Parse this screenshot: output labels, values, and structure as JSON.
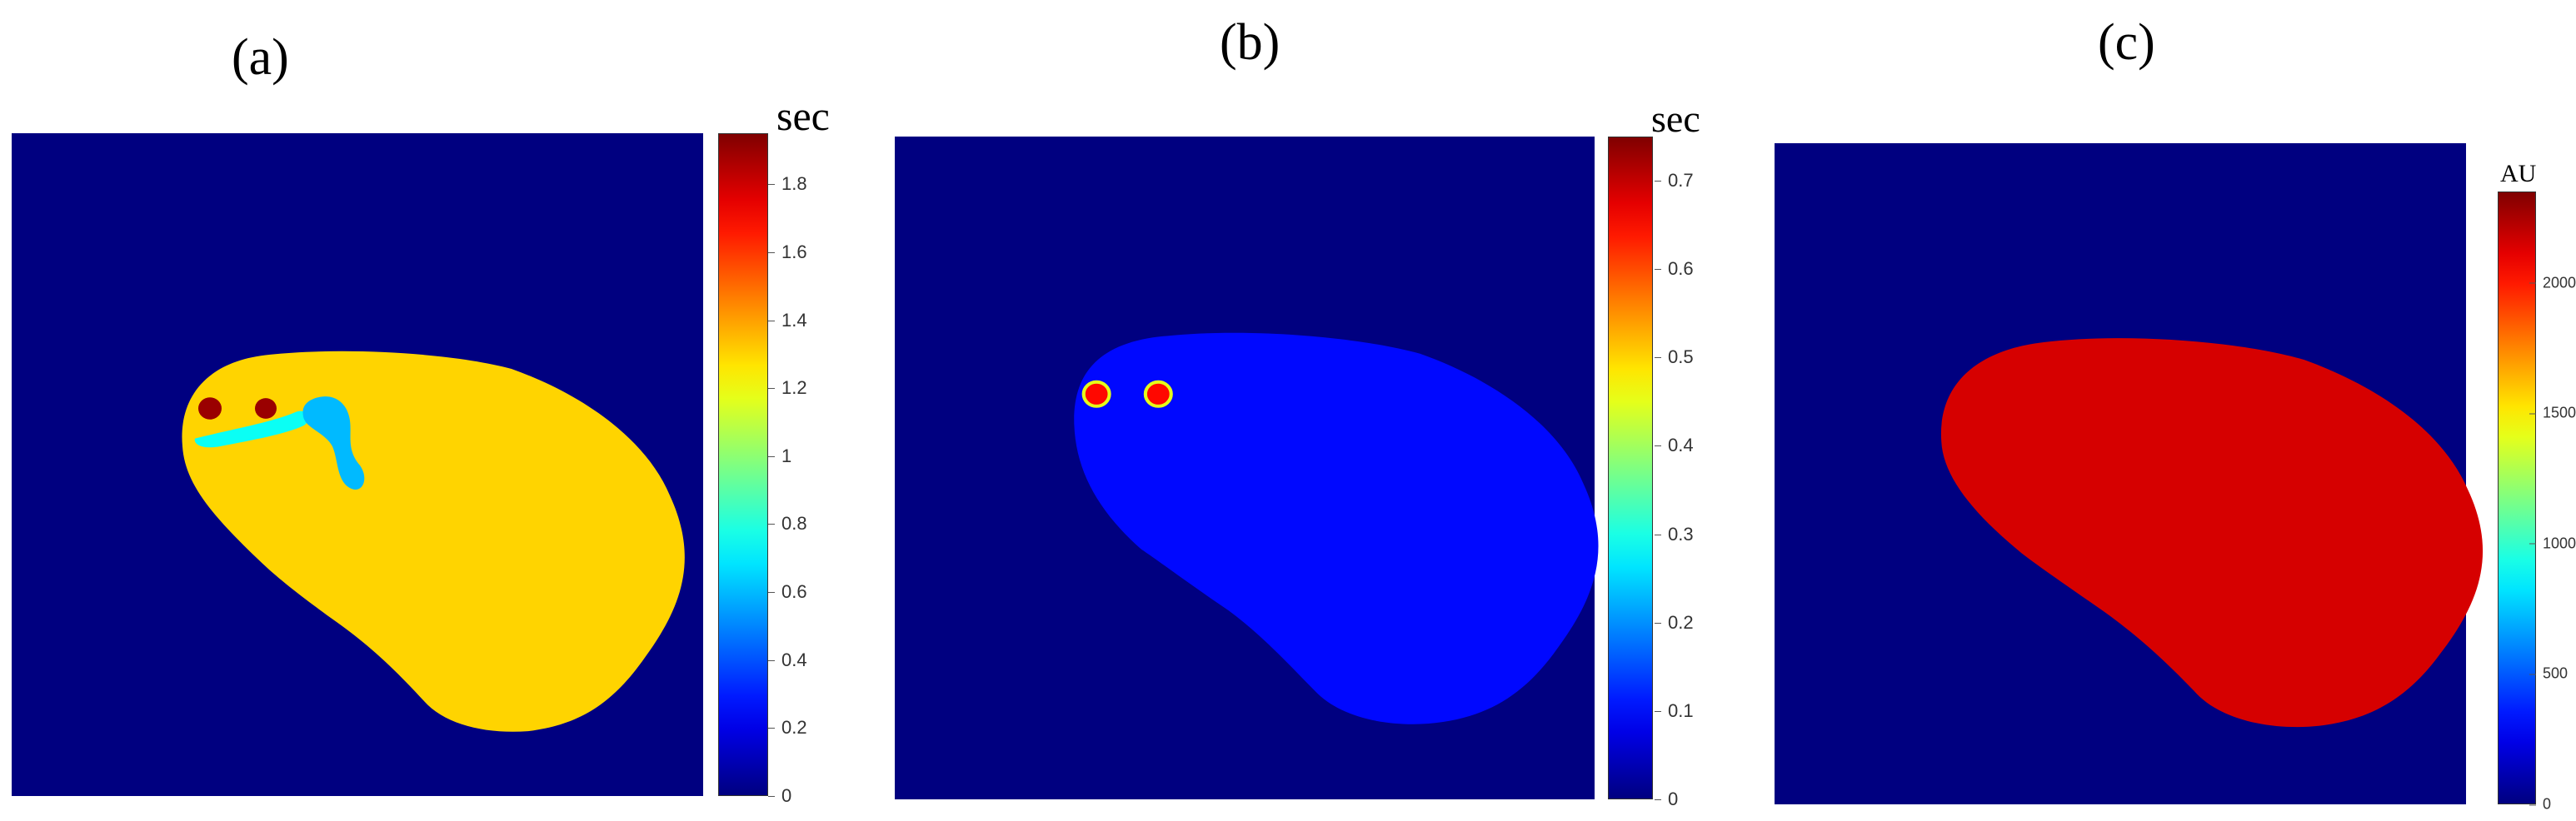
{
  "chart_data": [
    {
      "type": "heatmap",
      "panel_label": "(a)",
      "colorbar": {
        "title": "sec",
        "colormap": "jet",
        "range": [
          0,
          1.95
        ],
        "ticks": [
          0,
          0.2,
          0.4,
          0.6,
          0.8,
          1,
          1.2,
          1.4,
          1.6,
          1.8
        ],
        "tick_labels": [
          "0",
          "0.2",
          "0.4",
          "0.6",
          "0.8",
          "1",
          "1.2",
          "1.4",
          "1.6",
          "1.8"
        ]
      },
      "background_value": 0,
      "tissue_value": 1.3,
      "features": [
        {
          "kind": "spot",
          "value": 1.9
        },
        {
          "kind": "spot",
          "value": 1.9
        },
        {
          "kind": "channel",
          "value": 0.75
        },
        {
          "kind": "channel",
          "value": 0.6
        }
      ]
    },
    {
      "type": "heatmap",
      "panel_label": "(b)",
      "colorbar": {
        "title": "sec",
        "colormap": "jet",
        "range": [
          0,
          0.75
        ],
        "ticks": [
          0,
          0.1,
          0.2,
          0.3,
          0.4,
          0.5,
          0.6,
          0.7
        ],
        "tick_labels": [
          "0",
          "0.1",
          "0.2",
          "0.3",
          "0.4",
          "0.5",
          "0.6",
          "0.7"
        ]
      },
      "background_value": 0,
      "tissue_value": 0.1,
      "features": [
        {
          "kind": "spot",
          "value": 0.65
        },
        {
          "kind": "spot",
          "value": 0.65
        }
      ]
    },
    {
      "type": "heatmap",
      "panel_label": "(c)",
      "colorbar": {
        "title": "AU",
        "colormap": "jet",
        "range": [
          0,
          2350
        ],
        "ticks": [
          0,
          500,
          1000,
          1500,
          2000
        ],
        "tick_labels": [
          "0",
          "500",
          "1000",
          "1500",
          "2000"
        ]
      },
      "background_value": 0,
      "tissue_value": 2150,
      "features": []
    }
  ]
}
